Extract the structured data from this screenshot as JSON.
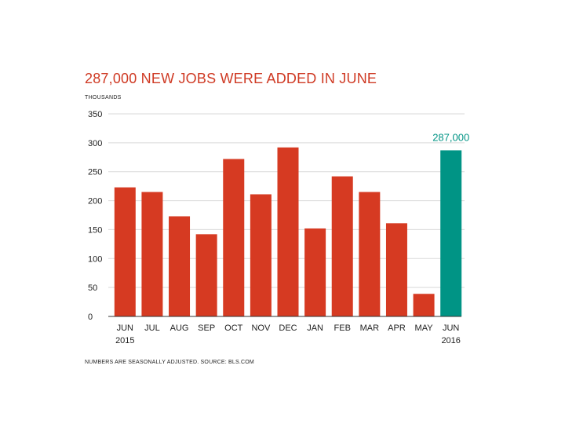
{
  "title": "287,000 NEW JOBS WERE ADDED IN JUNE",
  "units_label": "THOUSANDS",
  "source_note": "NUMBERS ARE SEASONALLY ADJUSTED. SOURCE: BLS.COM",
  "colors": {
    "bar": "#d63a22",
    "highlight": "#009485",
    "title": "#cf3a24",
    "grid": "#d9d9d9"
  },
  "chart_data": {
    "type": "bar",
    "title": "287,000 NEW JOBS WERE ADDED IN JUNE",
    "ylabel": "THOUSANDS",
    "xlabel": "",
    "ylim": [
      0,
      350
    ],
    "yticks": [
      0,
      50,
      100,
      150,
      200,
      250,
      300,
      350
    ],
    "grid": true,
    "categories": [
      "JUN",
      "JUL",
      "AUG",
      "SEP",
      "OCT",
      "NOV",
      "DEC",
      "JAN",
      "FEB",
      "MAR",
      "APR",
      "MAY",
      "JUN"
    ],
    "year_labels": {
      "0": "2015",
      "12": "2016"
    },
    "values": [
      223,
      215,
      173,
      142,
      272,
      211,
      292,
      152,
      242,
      215,
      161,
      39,
      287
    ],
    "highlight_index": 12,
    "annotations": [
      {
        "index": 12,
        "text": "287,000"
      }
    ]
  }
}
